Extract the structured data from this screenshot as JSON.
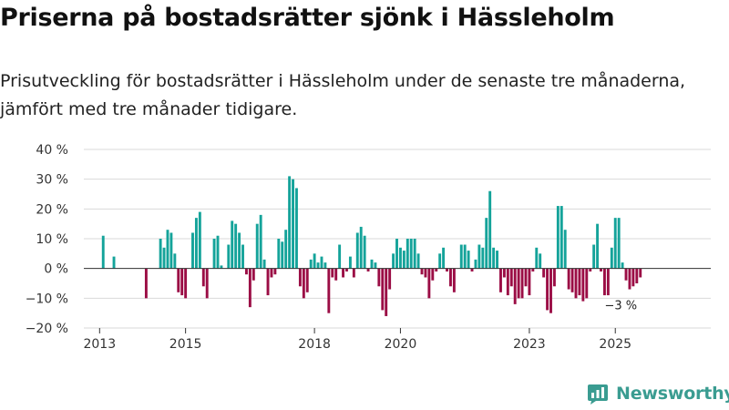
{
  "title": "Priserna på bostadsrätter sjönk i Hässleholm",
  "subtitle": "Prisutveckling för bostadsrätter i Hässleholm under de senaste tre månaderna, jämfört med tre månader tidigare.",
  "brand": {
    "name": "Newsworthy",
    "icon": "newsworthy-logo-icon",
    "color": "#3a9c91"
  },
  "chart_data": {
    "type": "bar",
    "title": "Priserna på bostadsrätter sjönk i Hässleholm",
    "xlabel": "",
    "ylabel": "",
    "ylim": [
      -20,
      40
    ],
    "y_ticks": [
      40,
      30,
      20,
      10,
      0,
      -10,
      -20
    ],
    "y_tick_labels": [
      "40 %",
      "30 %",
      "20 %",
      "10 %",
      "0 %",
      "−10 %",
      "−20 %"
    ],
    "x_ticks": [
      {
        "label": "2013",
        "index": 2
      },
      {
        "label": "2015",
        "index": 26
      },
      {
        "label": "2018",
        "index": 62
      },
      {
        "label": "2020",
        "index": 86
      },
      {
        "label": "2023",
        "index": 122
      },
      {
        "label": "2025",
        "index": 146
      }
    ],
    "start_month": "2012-11",
    "positive_color": "#14a39a",
    "negative_color": "#9b0d45",
    "annotation": {
      "label": "−3 %",
      "index": 150
    },
    "values": [
      0,
      0,
      0,
      11,
      0,
      0,
      4,
      0,
      0,
      0,
      0,
      0,
      0,
      0,
      0,
      -10,
      0,
      0,
      0,
      10,
      7,
      13,
      12,
      5,
      -8,
      -9,
      -10,
      0,
      12,
      17,
      19,
      -6,
      -10,
      0,
      10,
      11,
      1,
      0,
      8,
      16,
      15,
      12,
      8,
      -2,
      -13,
      -4,
      15,
      18,
      3,
      -9,
      -3,
      -2,
      10,
      9,
      13,
      31,
      30,
      27,
      -6,
      -10,
      -8,
      3,
      5,
      2,
      4,
      2,
      -15,
      -3,
      -4,
      8,
      -3,
      -1,
      4,
      -3,
      12,
      14,
      11,
      -1,
      3,
      2,
      -6,
      -14,
      -16,
      -7,
      5,
      10,
      7,
      6,
      10,
      10,
      10,
      5,
      -2,
      -3,
      -10,
      -4,
      -1,
      5,
      7,
      -1,
      -6,
      -8,
      0,
      8,
      8,
      6,
      -1,
      3,
      8,
      7,
      17,
      26,
      7,
      6,
      -8,
      -3,
      -9,
      -6,
      -12,
      -10,
      -10,
      -6,
      -9,
      -1,
      7,
      5,
      -3,
      -14,
      -15,
      -6,
      21,
      21,
      13,
      -7,
      -8,
      -10,
      -9,
      -11,
      -10,
      -1,
      8,
      15,
      -1,
      -9,
      -9,
      7,
      17,
      17,
      2,
      -4,
      -7,
      -6,
      -5,
      -3
    ]
  }
}
